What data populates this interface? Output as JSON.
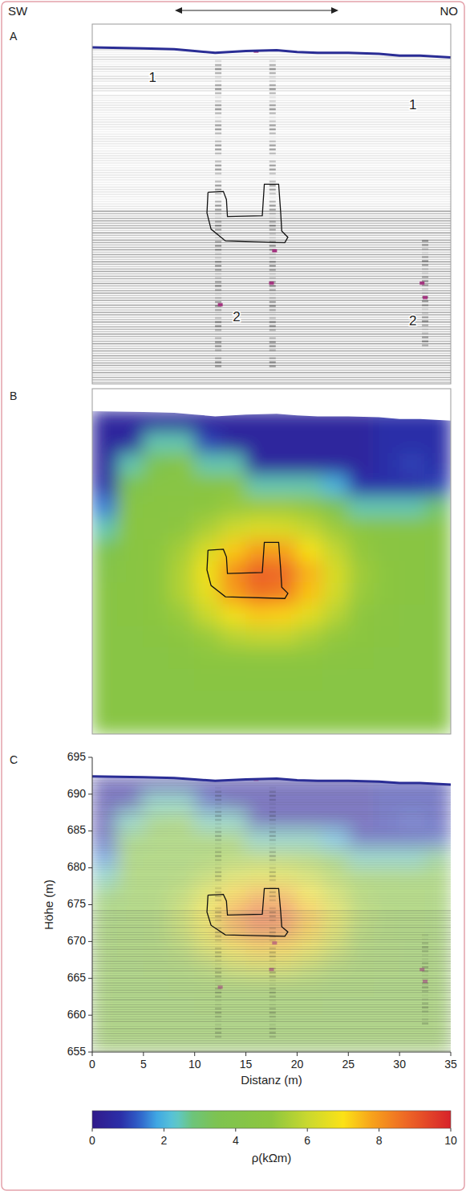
{
  "chart_data": {
    "type": "section",
    "direction_labels": [
      "SW",
      "NO"
    ],
    "panels": [
      "A",
      "B",
      "C"
    ],
    "annotations": [
      "1",
      "1",
      "2",
      "2"
    ],
    "x_label": "Distanz (m)",
    "y_label": "Höhe (m)",
    "xlim": [
      0,
      35
    ],
    "ylim": [
      655,
      695
    ],
    "xticks": [
      0,
      5,
      10,
      15,
      20,
      25,
      30,
      35
    ],
    "yticks": [
      655,
      660,
      665,
      670,
      675,
      680,
      685,
      690,
      695
    ],
    "surface": {
      "x": [
        0,
        5,
        8,
        10,
        12,
        15,
        18,
        20,
        22,
        25,
        28,
        30,
        32,
        35
      ],
      "y": [
        692.4,
        692.3,
        692.2,
        692.0,
        691.8,
        692.0,
        692.1,
        691.9,
        691.8,
        691.8,
        691.7,
        691.5,
        691.5,
        691.3
      ]
    },
    "outline": {
      "x": [
        11.3,
        12.8,
        13.1,
        13.2,
        16.6,
        16.8,
        18.2,
        18.4,
        18.5,
        19.1,
        18.8,
        13.0,
        11.6,
        11.2,
        11.3
      ],
      "y": [
        676.3,
        676.4,
        675.5,
        673.6,
        673.7,
        677.2,
        677.2,
        674.0,
        672.0,
        671.3,
        670.7,
        670.9,
        672.2,
        674.0,
        676.3
      ]
    },
    "resistivity": {
      "x_edges": [
        0,
        2.5,
        5,
        7.5,
        10,
        12.5,
        15,
        17.5,
        20,
        22.5,
        25,
        27.5,
        30,
        32.5,
        35
      ],
      "y_edges": [
        692.5,
        690,
        687.5,
        685,
        682.5,
        680,
        677.5,
        675,
        672.5,
        670,
        667.5,
        665,
        662.5,
        660,
        657.5,
        655
      ],
      "values": [
        [
          0.5,
          0.5,
          0.5,
          0.5,
          0.5,
          0.5,
          0.5,
          0.5,
          0.5,
          0.5,
          0.5,
          0.8,
          0.8,
          0.8
        ],
        [
          0.5,
          0.5,
          2.5,
          2.5,
          1.0,
          0.5,
          0.5,
          0.5,
          0.5,
          0.5,
          0.5,
          0.8,
          0.8,
          0.8
        ],
        [
          0.5,
          2.5,
          3.5,
          4.5,
          2.5,
          2.5,
          0.5,
          0.5,
          0.5,
          0.5,
          0.5,
          0.8,
          1.0,
          0.8
        ],
        [
          0.8,
          3.5,
          4.5,
          4.5,
          4.6,
          4.7,
          2.5,
          2.5,
          2.5,
          2.0,
          0.8,
          0.8,
          0.8,
          1.0
        ],
        [
          1.5,
          4.5,
          4.6,
          4.7,
          4.9,
          5.2,
          5.3,
          5.3,
          5.1,
          3.5,
          2.5,
          2.5,
          2.5,
          3.0
        ],
        [
          2.5,
          4.6,
          4.7,
          5.0,
          5.5,
          6.1,
          6.4,
          6.3,
          5.9,
          5.3,
          4.9,
          4.6,
          4.5,
          4.5
        ],
        [
          3.5,
          4.6,
          4.8,
          5.4,
          6.3,
          7.3,
          7.9,
          7.8,
          6.9,
          5.9,
          5.1,
          4.7,
          4.6,
          4.5
        ],
        [
          4.2,
          4.6,
          4.9,
          5.6,
          6.8,
          8.1,
          8.9,
          8.7,
          7.6,
          6.3,
          5.3,
          4.8,
          4.6,
          4.5
        ],
        [
          4.5,
          4.6,
          4.9,
          5.6,
          6.6,
          7.9,
          8.6,
          8.4,
          7.4,
          6.2,
          5.2,
          4.8,
          4.6,
          4.5
        ],
        [
          4.5,
          4.6,
          4.8,
          5.2,
          6.0,
          6.8,
          7.3,
          7.2,
          6.5,
          5.7,
          5.0,
          4.7,
          4.5,
          4.5
        ],
        [
          4.5,
          4.5,
          4.6,
          4.9,
          5.2,
          5.7,
          5.9,
          5.9,
          5.5,
          5.1,
          4.8,
          4.6,
          4.5,
          4.5
        ],
        [
          4.5,
          4.5,
          4.5,
          4.6,
          4.8,
          4.9,
          5.0,
          5.0,
          4.9,
          4.7,
          4.6,
          4.5,
          4.5,
          4.5
        ],
        [
          4.5,
          4.5,
          4.5,
          4.5,
          4.6,
          4.6,
          4.6,
          4.6,
          4.6,
          4.5,
          4.5,
          4.5,
          4.5,
          4.5
        ],
        [
          4.5,
          4.5,
          4.5,
          4.5,
          4.5,
          4.5,
          4.5,
          4.5,
          4.5,
          4.5,
          4.5,
          4.5,
          4.5,
          4.5
        ],
        [
          4.5,
          4.5,
          4.5,
          4.5,
          4.5,
          4.5,
          4.5,
          4.5,
          4.5,
          4.5,
          4.5,
          4.5,
          4.5,
          4.5
        ]
      ]
    },
    "colorbar": {
      "label": "ρ(kΩm)",
      "range": [
        0,
        10
      ],
      "ticks": [
        0,
        2,
        4,
        6,
        8,
        10
      ]
    }
  }
}
